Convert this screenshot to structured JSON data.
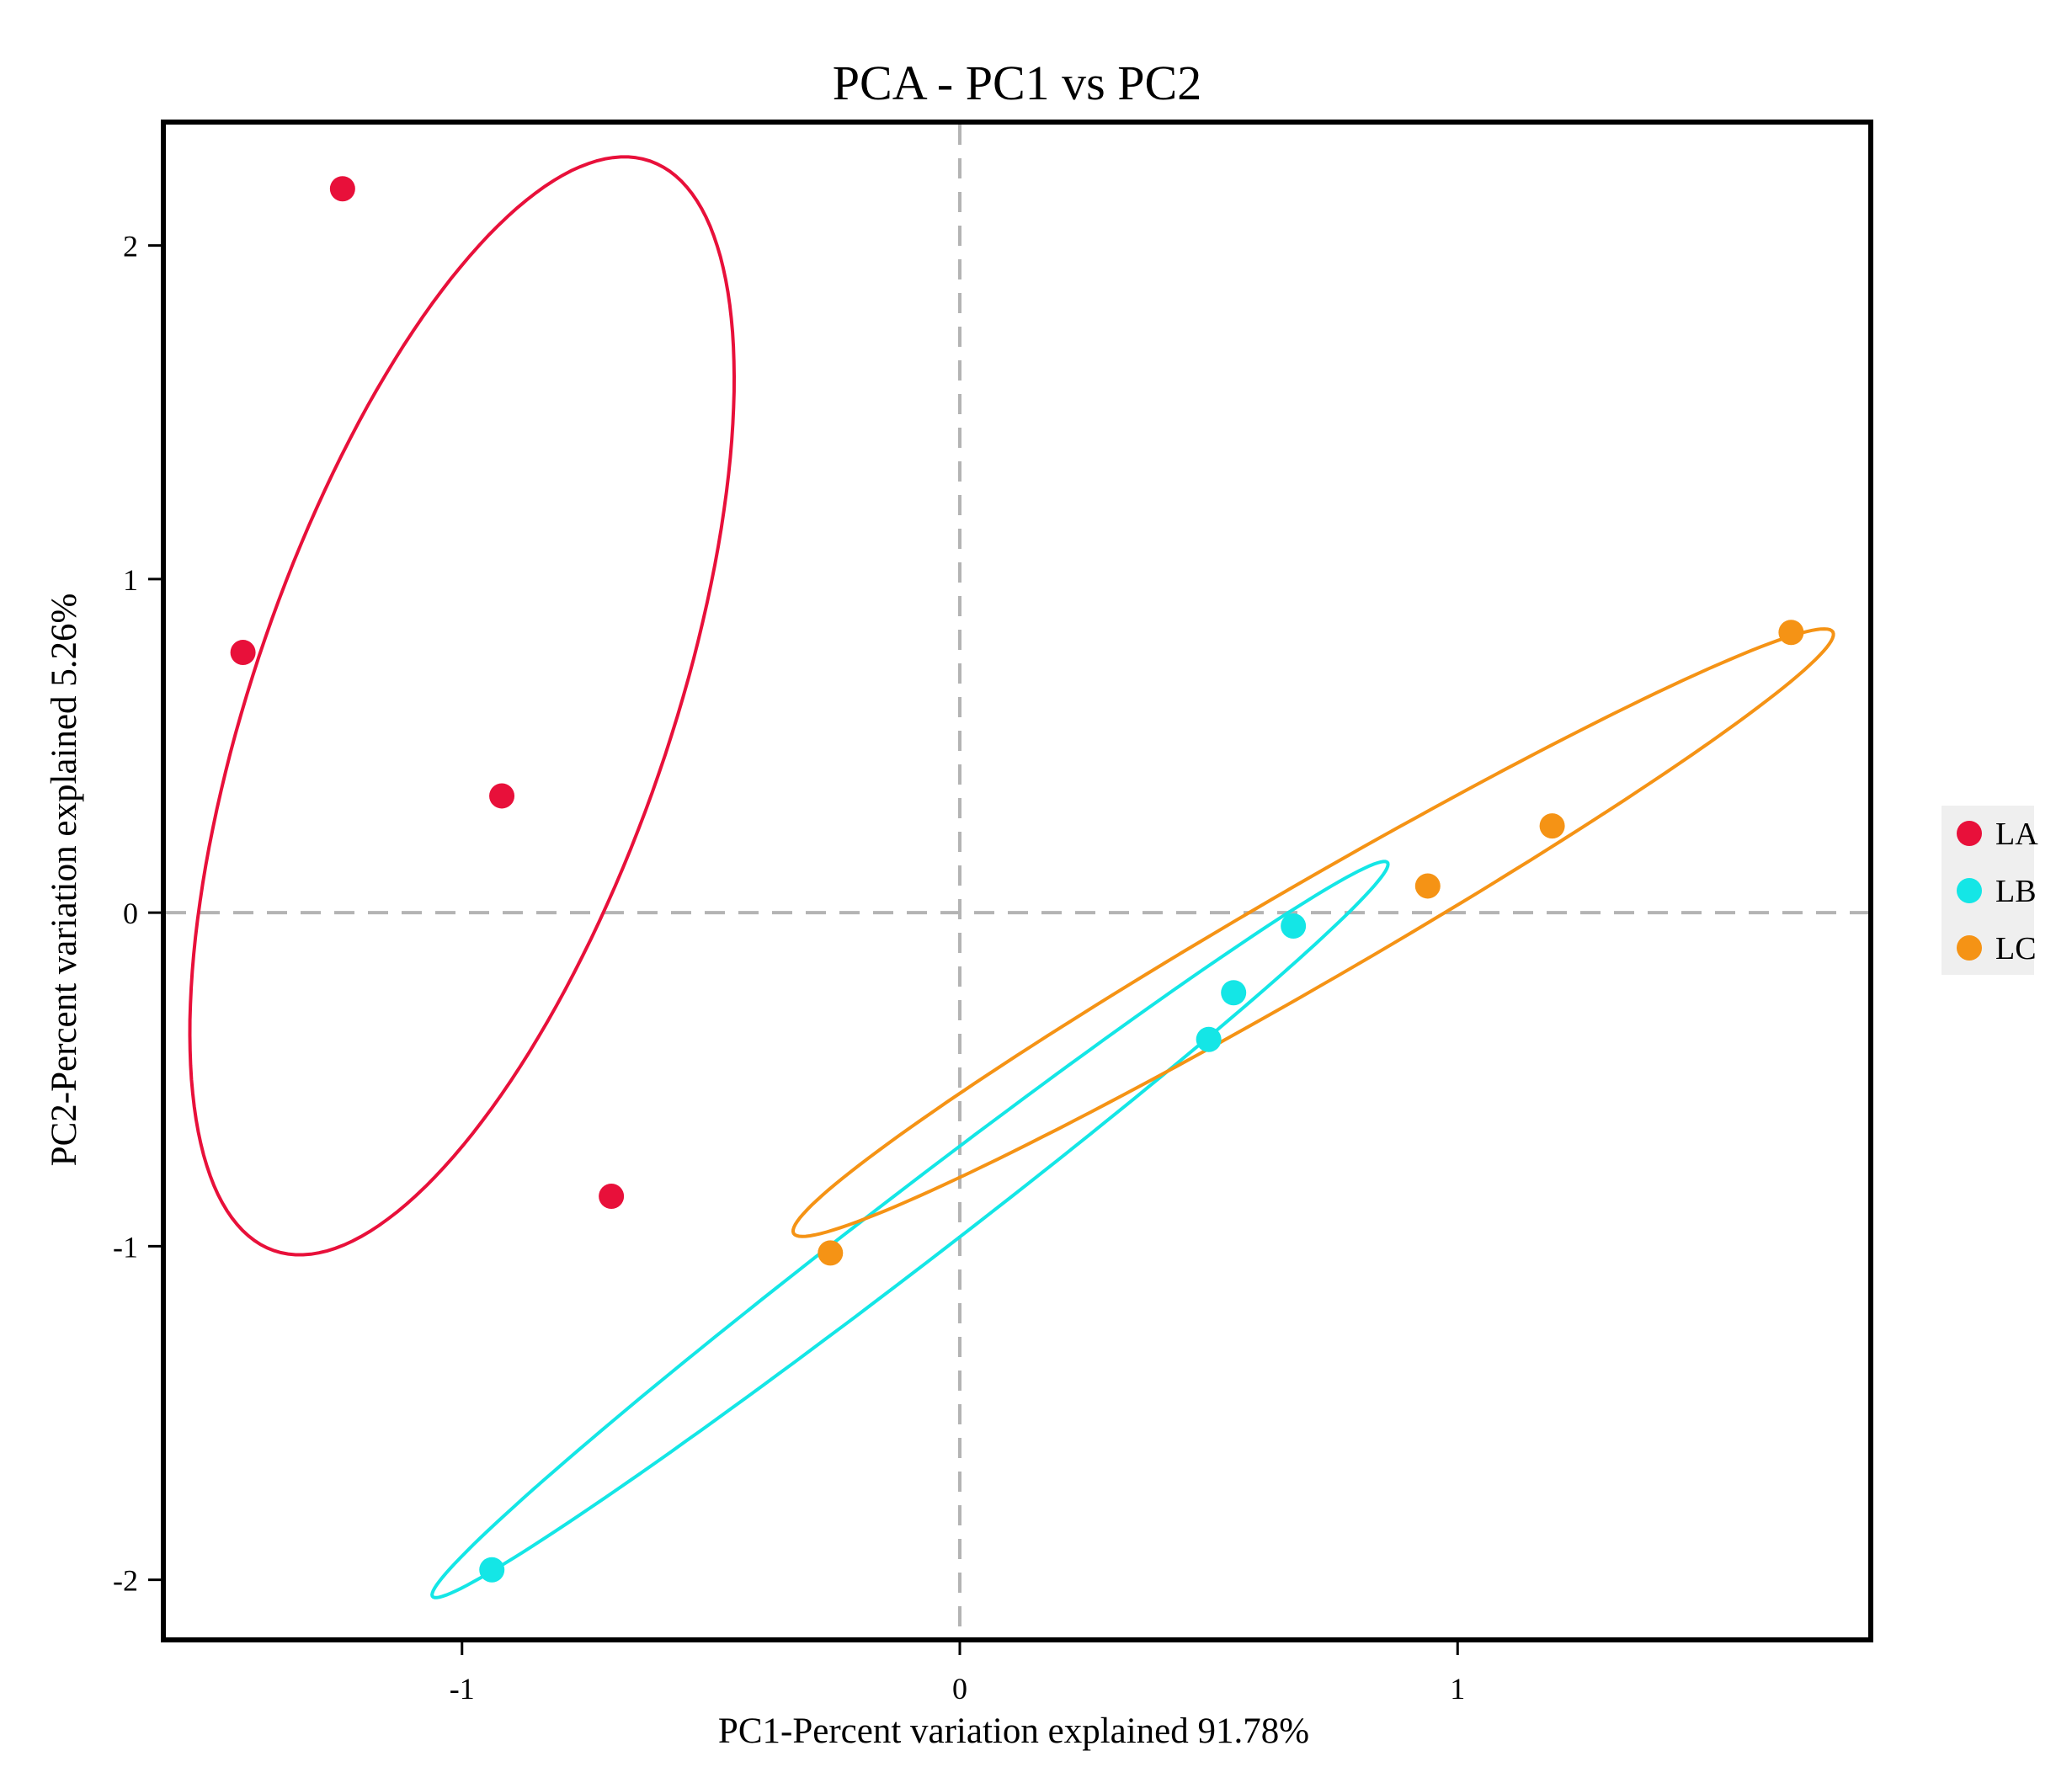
{
  "chart_data": {
    "type": "scatter",
    "title": "PCA - PC1 vs PC2",
    "xlabel": "PC1-Percent variation explained 91.78%",
    "ylabel": "PC2-Percent variation explained 5.26%",
    "xlim": [
      -1.6,
      1.83
    ],
    "ylim": [
      -2.18,
      2.37
    ],
    "xticks": [
      -1,
      0,
      1
    ],
    "yticks": [
      -2,
      -1,
      0,
      1,
      2
    ],
    "reference_lines": {
      "x": 0,
      "y": 0
    },
    "grid": false,
    "legend_position": "right",
    "series": [
      {
        "name": "LA",
        "color": "#e8103a",
        "points": [
          {
            "x": -1.24,
            "y": 2.17
          },
          {
            "x": -1.44,
            "y": 0.78
          },
          {
            "x": -0.92,
            "y": 0.35
          },
          {
            "x": -0.7,
            "y": -0.85
          }
        ],
        "ellipse": {
          "cx": -1.0,
          "cy": 0.62,
          "semi_major": 1.68,
          "semi_minor": 0.43,
          "angle_deg": 78
        }
      },
      {
        "name": "LB",
        "color": "#14e6e6",
        "points": [
          {
            "x": 0.67,
            "y": -0.04
          },
          {
            "x": 0.55,
            "y": -0.24
          },
          {
            "x": 0.5,
            "y": -0.38
          },
          {
            "x": -0.94,
            "y": -1.97
          }
        ],
        "ellipse": {
          "cx": -0.1,
          "cy": -0.95,
          "semi_major": 1.46,
          "semi_minor": 0.09,
          "angle_deg": 49
        }
      },
      {
        "name": "LC",
        "color": "#f59315",
        "points": [
          {
            "x": 1.67,
            "y": 0.84
          },
          {
            "x": 1.19,
            "y": 0.26
          },
          {
            "x": 0.94,
            "y": 0.08
          },
          {
            "x": -0.26,
            "y": -1.02
          }
        ],
        "ellipse": {
          "cx": 0.71,
          "cy": -0.06,
          "semi_major": 1.38,
          "semi_minor": 0.13,
          "angle_deg": 41
        }
      }
    ]
  }
}
